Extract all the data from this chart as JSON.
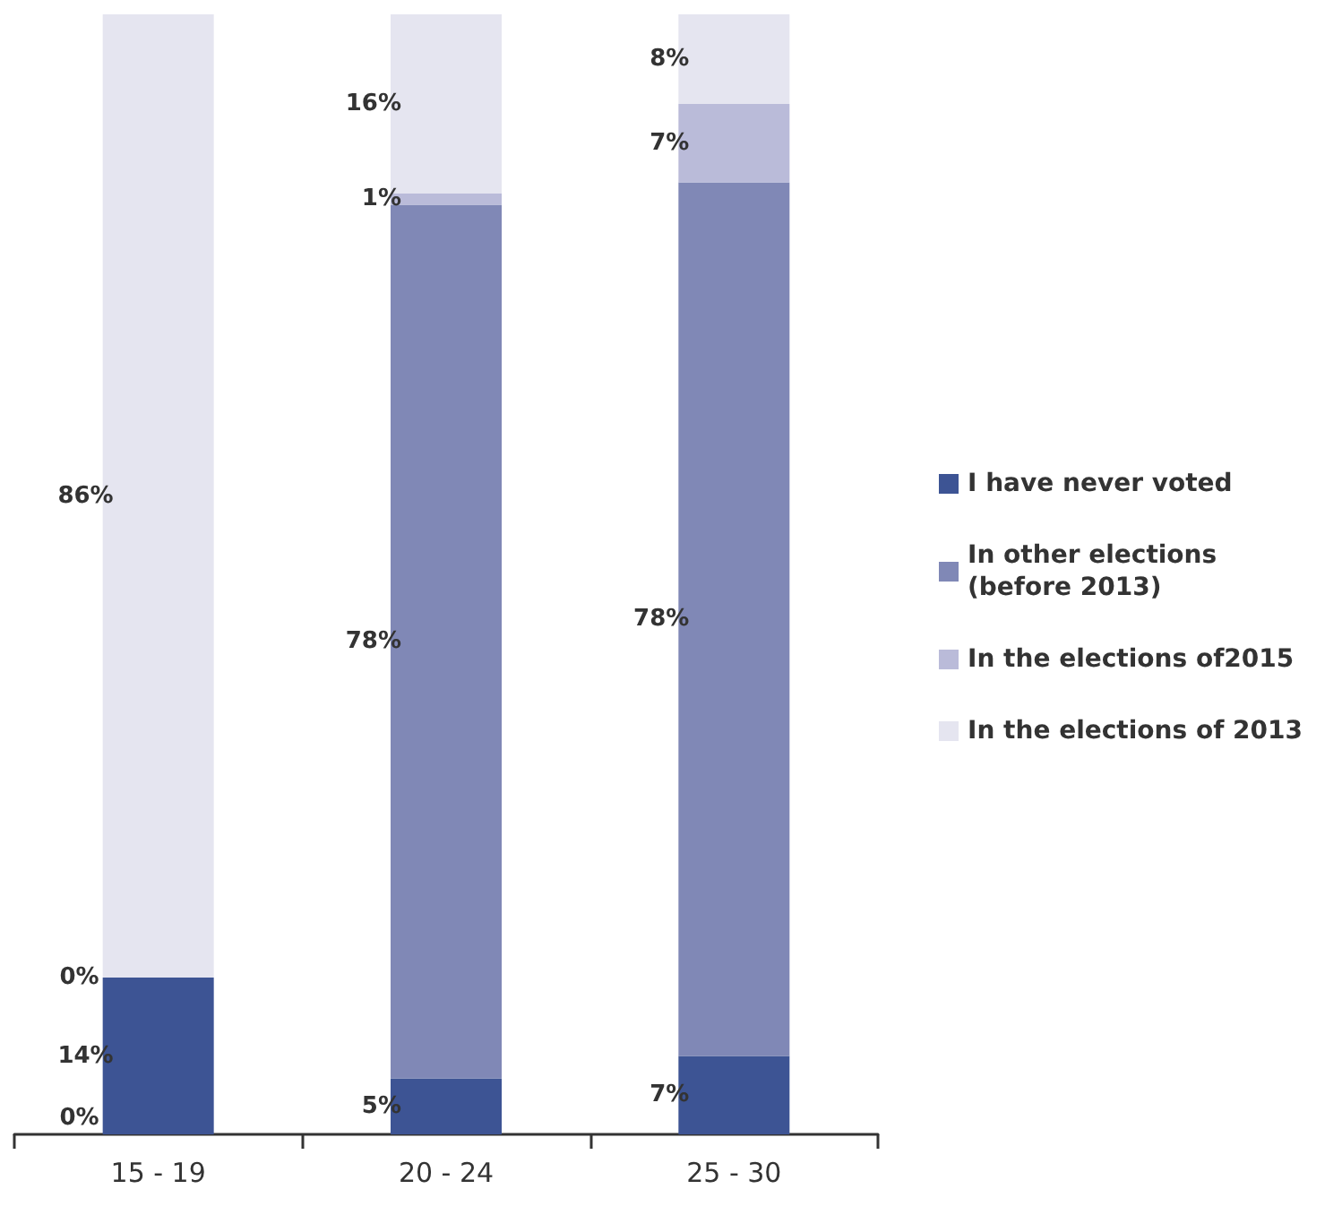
{
  "chart_data": {
    "type": "bar",
    "stacked": true,
    "legend": "right",
    "tick_labels": "x",
    "categories": [
      "15 - 19",
      "20 - 24",
      "25 - 30"
    ],
    "series": [
      {
        "name": "I have never voted",
        "color": "#3d5494",
        "values": [
          14,
          5,
          7
        ],
        "value_labels": [
          "14%",
          "5%",
          "7%"
        ]
      },
      {
        "name": "In other elections (before 2013)",
        "color": "#8088b6",
        "values": [
          0,
          78,
          78
        ],
        "value_labels": [
          null,
          "78%",
          "78%"
        ]
      },
      {
        "name": "In the elections of2015",
        "color": "#babbd9",
        "values": [
          0,
          1,
          7
        ],
        "value_labels": [
          null,
          "1%",
          "7%"
        ]
      },
      {
        "name": "In the elections of 2013",
        "color": "#e5e5f0",
        "values": [
          86,
          16,
          8
        ],
        "value_labels": [
          "86%",
          "16%",
          "8%"
        ]
      }
    ],
    "annotations": [
      {
        "text": "0%",
        "x": "15 - 19",
        "y": 0
      },
      {
        "text": "0%",
        "x": "15 - 19",
        "y": 14
      }
    ]
  }
}
